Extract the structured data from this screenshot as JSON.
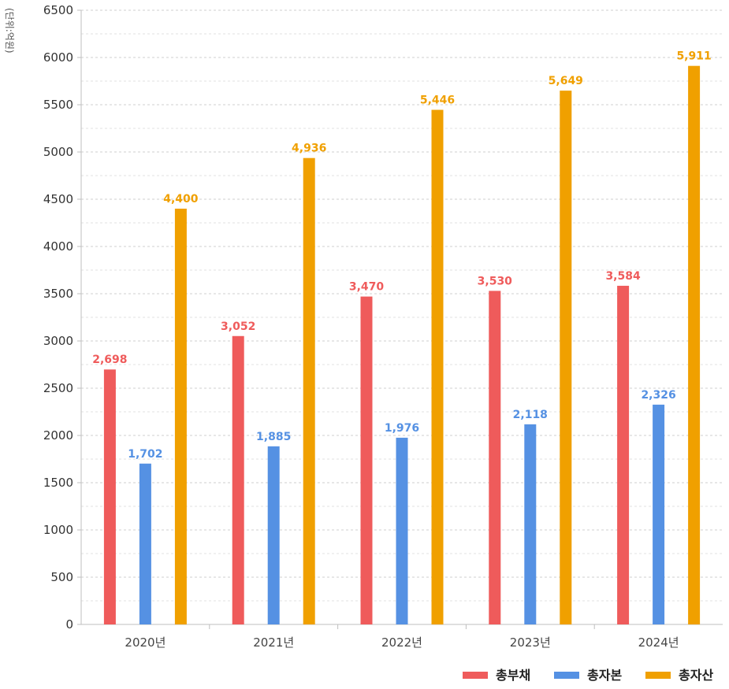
{
  "chart_data": {
    "type": "bar",
    "unit_label": "(단위:억원)",
    "categories": [
      "2020년",
      "2021년",
      "2022년",
      "2023년",
      "2024년"
    ],
    "series": [
      {
        "name": "총부채",
        "color": "#ef5b5b",
        "values": [
          2698,
          3052,
          3470,
          3530,
          3584
        ],
        "labels": [
          "2,698",
          "3,052",
          "3,470",
          "3,530",
          "3,584"
        ]
      },
      {
        "name": "총자본",
        "color": "#5591e3",
        "values": [
          1702,
          1885,
          1976,
          2118,
          2326
        ],
        "labels": [
          "1,702",
          "1,885",
          "1,976",
          "2,118",
          "2,326"
        ]
      },
      {
        "name": "총자산",
        "color": "#f0a000",
        "values": [
          4400,
          4936,
          5446,
          5649,
          5911
        ],
        "labels": [
          "4,400",
          "4,936",
          "5,446",
          "5,649",
          "5,911"
        ]
      }
    ],
    "ylim": [
      0,
      6500
    ],
    "yticks": [
      0,
      500,
      1000,
      1500,
      2000,
      2500,
      3000,
      3500,
      4000,
      4500,
      5000,
      5500,
      6000,
      6500
    ],
    "grid": true,
    "legend_position": "bottom-right"
  }
}
